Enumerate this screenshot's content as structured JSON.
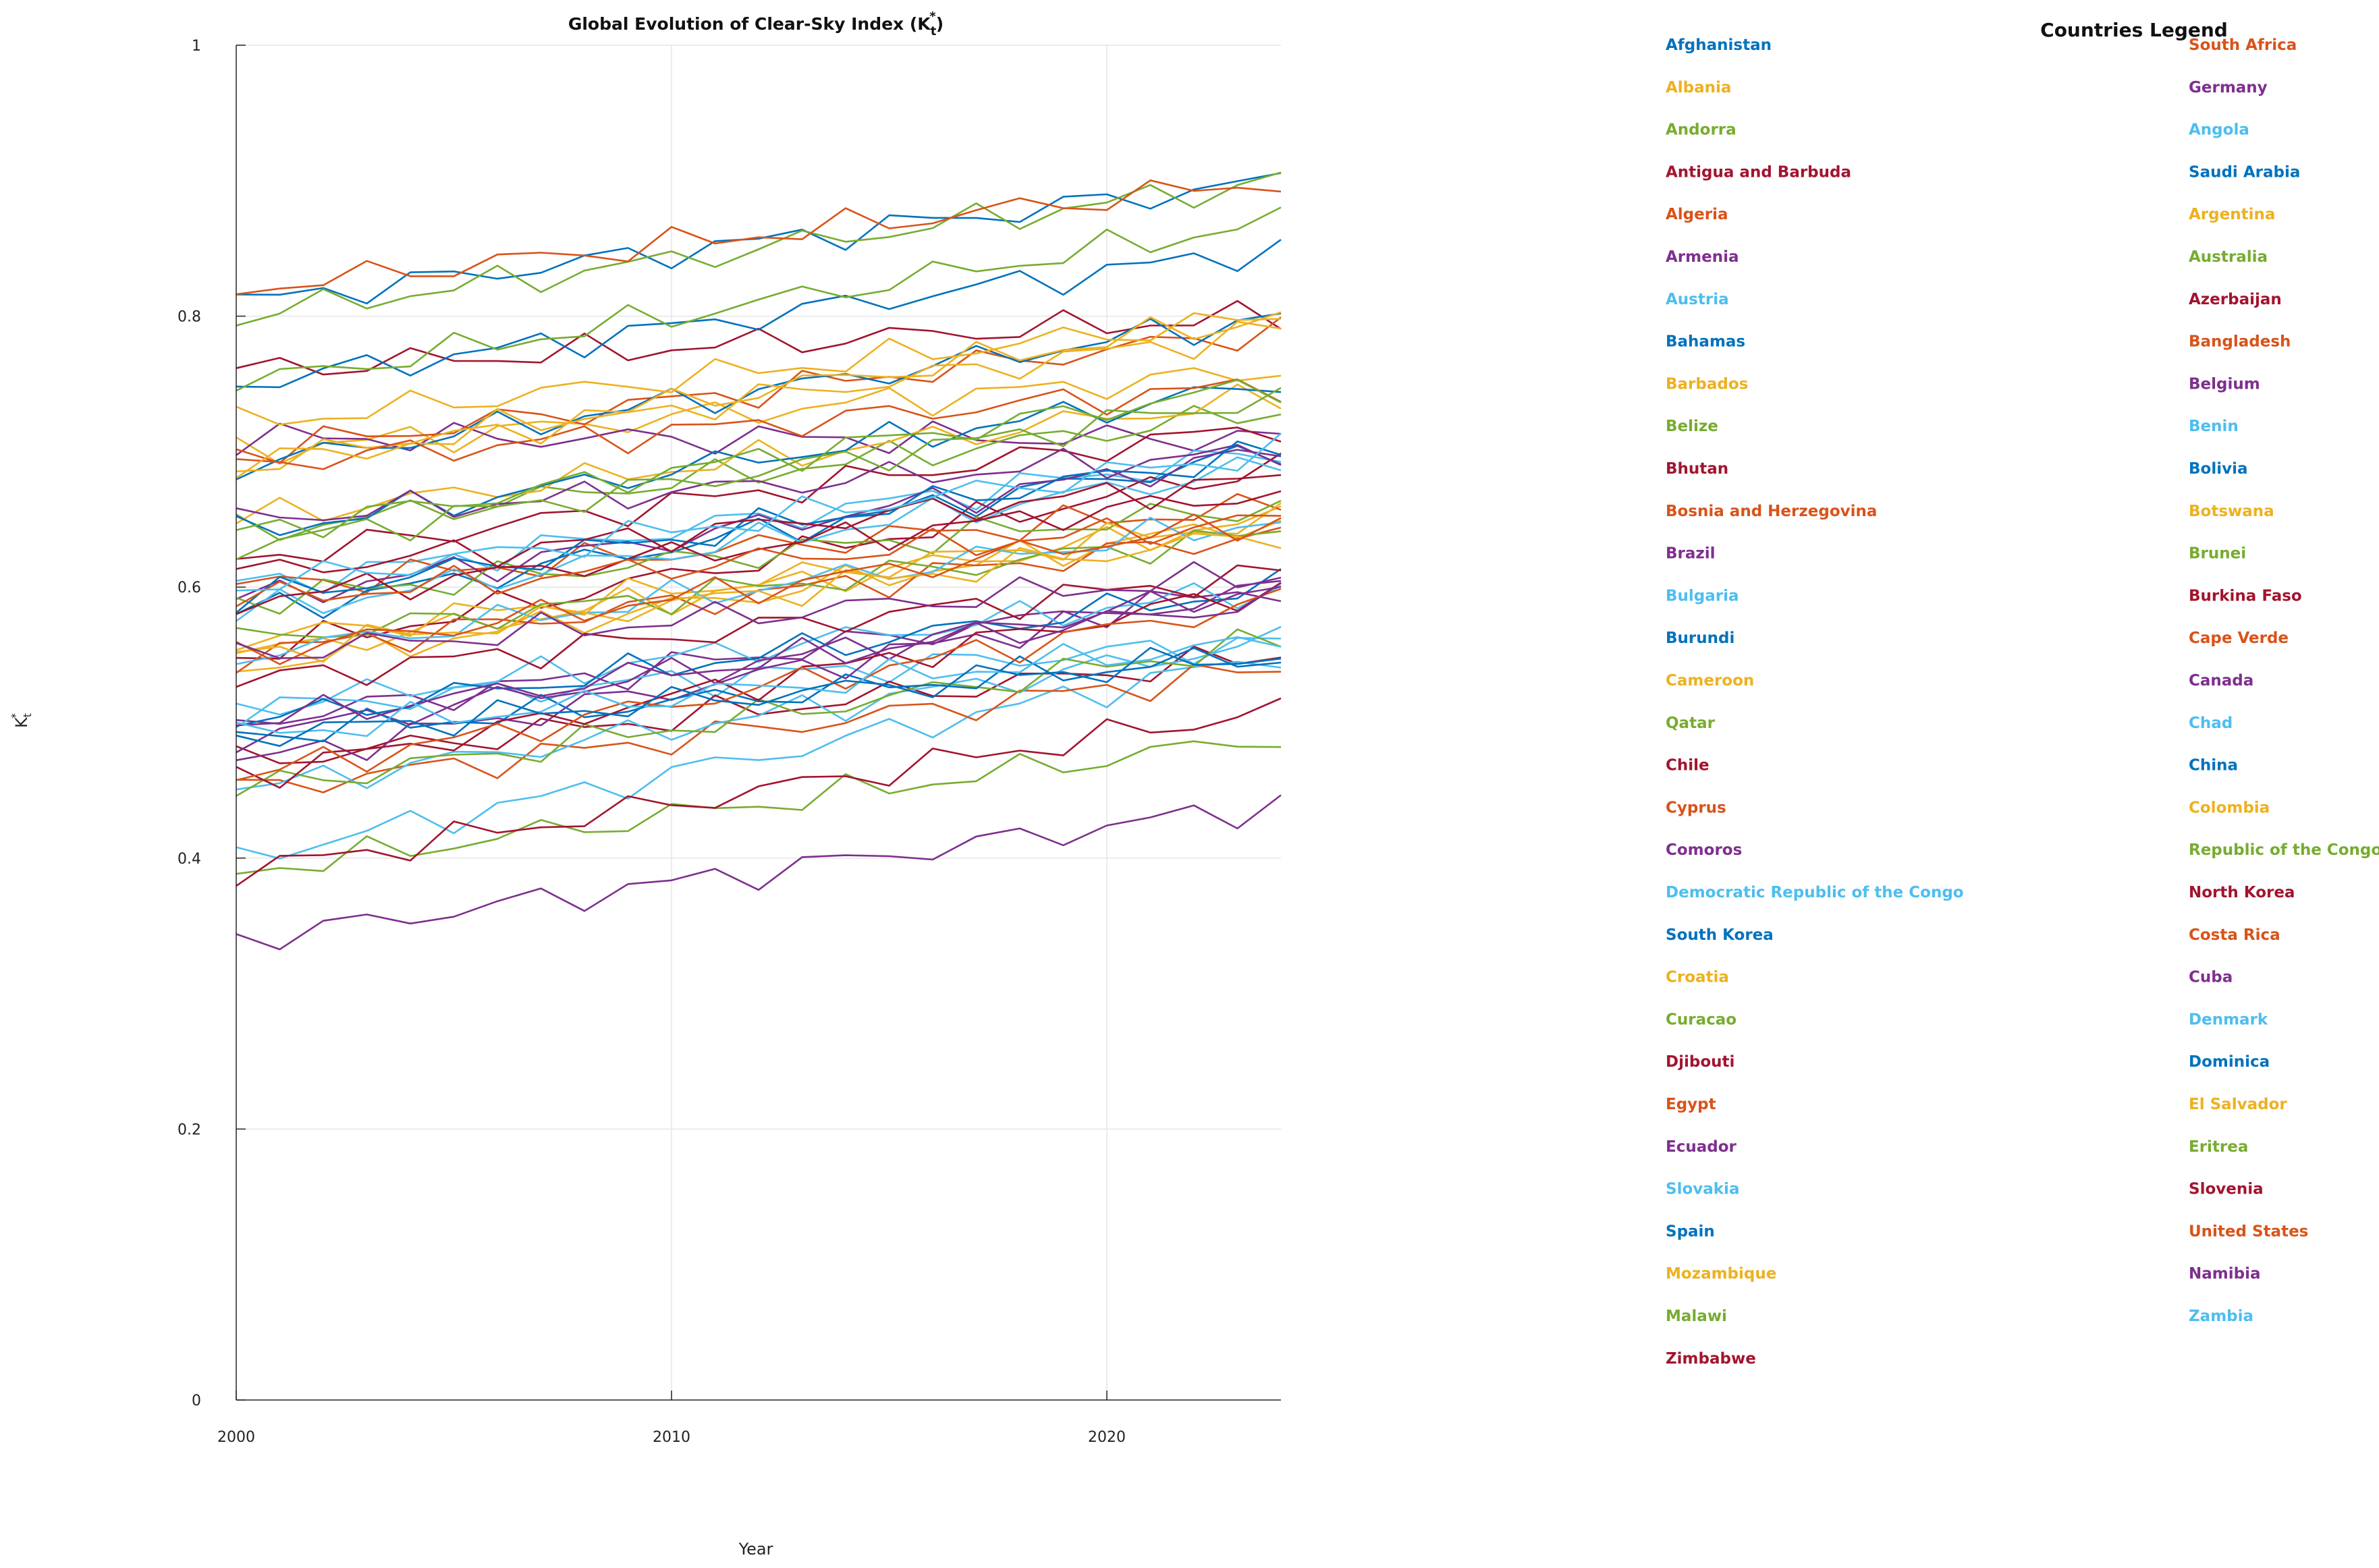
{
  "chart_data": {
    "type": "line",
    "title": "Global Evolution of Clear-Sky Index (K",
    "title_sub": "t",
    "title_sup": "*",
    "title_end": ")",
    "xlabel": "Year",
    "ylabel": "K",
    "ylabel_sub": "t",
    "ylabel_sup": "*",
    "xlim": [
      2000,
      2024
    ],
    "ylim": [
      0,
      1
    ],
    "xticks": [
      2000,
      2010,
      2020
    ],
    "xtick_labels": [
      "2000",
      "2010",
      "2020"
    ],
    "yticks": [
      0,
      0.2,
      0.4,
      0.6,
      0.8,
      1
    ],
    "ytick_labels": [
      "0",
      "0.2",
      "0.4",
      "0.6",
      "0.8",
      "1"
    ],
    "grid": true,
    "legend_title": "Countries Legend",
    "legend_placement": "right",
    "x": [
      2000,
      2001,
      2002,
      2003,
      2004,
      2005,
      2006,
      2007,
      2008,
      2009,
      2010,
      2011,
      2012,
      2013,
      2014,
      2015,
      2016,
      2017,
      2018,
      2019,
      2020,
      2021,
      2022,
      2023,
      2024
    ],
    "series": [
      {
        "name": "Afghanistan",
        "color": "#0072BD",
        "start": 0.81,
        "end": 0.9
      },
      {
        "name": "Albania",
        "color": "#EDB120",
        "start": 0.7,
        "end": 0.76
      },
      {
        "name": "Andorra",
        "color": "#77AC30",
        "start": 0.8,
        "end": 0.9
      },
      {
        "name": "Antigua and Barbuda",
        "color": "#A2142F",
        "start": 0.76,
        "end": 0.8
      },
      {
        "name": "Algeria",
        "color": "#D95319",
        "start": 0.82,
        "end": 0.9
      },
      {
        "name": "Armenia",
        "color": "#7E2F8E",
        "start": 0.71,
        "end": 0.71
      },
      {
        "name": "Austria",
        "color": "#4DBEEE",
        "start": 0.6,
        "end": 0.7
      },
      {
        "name": "Bahamas",
        "color": "#0072BD",
        "start": 0.75,
        "end": 0.85
      },
      {
        "name": "Barbados",
        "color": "#EDB120",
        "start": 0.55,
        "end": 0.65
      },
      {
        "name": "Belize",
        "color": "#77AC30",
        "start": 0.64,
        "end": 0.73
      },
      {
        "name": "Bhutan",
        "color": "#A2142F",
        "start": 0.55,
        "end": 0.69
      },
      {
        "name": "Bosnia and Herzegovina",
        "color": "#D95319",
        "start": 0.6,
        "end": 0.66
      },
      {
        "name": "Brazil",
        "color": "#7E2F8E",
        "start": 0.5,
        "end": 0.6
      },
      {
        "name": "Bulgaria",
        "color": "#4DBEEE",
        "start": 0.51,
        "end": 0.56
      },
      {
        "name": "Burundi",
        "color": "#0072BD",
        "start": 0.58,
        "end": 0.7
      },
      {
        "name": "Cameroon",
        "color": "#EDB120",
        "start": 0.54,
        "end": 0.65
      },
      {
        "name": "Qatar",
        "color": "#77AC30",
        "start": 0.75,
        "end": 0.87
      },
      {
        "name": "Chile",
        "color": "#A2142F",
        "start": 0.47,
        "end": 0.55
      },
      {
        "name": "Cyprus",
        "color": "#D95319",
        "start": 0.7,
        "end": 0.79
      },
      {
        "name": "Comoros",
        "color": "#7E2F8E",
        "start": 0.47,
        "end": 0.6
      },
      {
        "name": "Democratic Republic of the Congo",
        "color": "#4DBEEE",
        "start": 0.4,
        "end": 0.55
      },
      {
        "name": "South Korea",
        "color": "#0072BD",
        "start": 0.69,
        "end": 0.8
      },
      {
        "name": "Croatia",
        "color": "#EDB120",
        "start": 0.65,
        "end": 0.74
      },
      {
        "name": "Curacao",
        "color": "#77AC30",
        "start": 0.39,
        "end": 0.49
      },
      {
        "name": "Djibouti",
        "color": "#A2142F",
        "start": 0.39,
        "end": 0.51
      },
      {
        "name": "Egypt",
        "color": "#D95319",
        "start": 0.45,
        "end": 0.54
      },
      {
        "name": "Ecuador",
        "color": "#7E2F8E",
        "start": 0.34,
        "end": 0.44
      },
      {
        "name": "Slovakia",
        "color": "#4DBEEE",
        "start": 0.45,
        "end": 0.56
      },
      {
        "name": "Spain",
        "color": "#0072BD",
        "start": 0.64,
        "end": 0.75
      },
      {
        "name": "Mozambique",
        "color": "#EDB120",
        "start": 0.69,
        "end": 0.8
      },
      {
        "name": "Malawi",
        "color": "#77AC30",
        "start": 0.45,
        "end": 0.56
      },
      {
        "name": "Zimbabwe",
        "color": "#A2142F",
        "start": 0.62,
        "end": 0.72
      },
      {
        "name": "South Africa",
        "color": "#D95319",
        "start": 0.55,
        "end": 0.64
      },
      {
        "name": "Germany",
        "color": "#7E2F8E",
        "start": 0.59,
        "end": 0.7
      },
      {
        "name": "Angola",
        "color": "#4DBEEE",
        "start": 0.51,
        "end": 0.6
      },
      {
        "name": "Saudi Arabia",
        "color": "#0072BD",
        "start": 0.5,
        "end": 0.6
      },
      {
        "name": "Argentina",
        "color": "#EDB120",
        "start": 0.72,
        "end": 0.8
      },
      {
        "name": "Australia",
        "color": "#77AC30",
        "start": 0.59,
        "end": 0.66
      },
      {
        "name": "Azerbaijan",
        "color": "#A2142F",
        "start": 0.53,
        "end": 0.61
      },
      {
        "name": "Bangladesh",
        "color": "#D95319",
        "start": 0.69,
        "end": 0.75
      },
      {
        "name": "Belgium",
        "color": "#7E2F8E",
        "start": 0.49,
        "end": 0.6
      },
      {
        "name": "Benin",
        "color": "#4DBEEE",
        "start": 0.58,
        "end": 0.69
      },
      {
        "name": "Bolivia",
        "color": "#0072BD",
        "start": 0.49,
        "end": 0.55
      },
      {
        "name": "Botswana",
        "color": "#EDB120",
        "start": 0.56,
        "end": 0.65
      },
      {
        "name": "Brunei",
        "color": "#77AC30",
        "start": 0.56,
        "end": 0.64
      },
      {
        "name": "Burkina Faso",
        "color": "#A2142F",
        "start": 0.46,
        "end": 0.6
      },
      {
        "name": "Cape Verde",
        "color": "#D95319",
        "start": 0.46,
        "end": 0.59
      },
      {
        "name": "Canada",
        "color": "#7E2F8E",
        "start": 0.65,
        "end": 0.7
      },
      {
        "name": "Chad",
        "color": "#4DBEEE",
        "start": 0.55,
        "end": 0.65
      },
      {
        "name": "China",
        "color": "#0072BD",
        "start": 0.59,
        "end": 0.7
      },
      {
        "name": "Colombia",
        "color": "#EDB120",
        "start": 0.55,
        "end": 0.64
      },
      {
        "name": "Republic of the Congo",
        "color": "#77AC30",
        "start": 0.63,
        "end": 0.74
      },
      {
        "name": "North Korea",
        "color": "#A2142F",
        "start": 0.61,
        "end": 0.68
      },
      {
        "name": "Costa Rica",
        "color": "#D95319",
        "start": 0.55,
        "end": 0.65
      },
      {
        "name": "Cuba",
        "color": "#7E2F8E",
        "start": 0.5,
        "end": 0.59
      },
      {
        "name": "Denmark",
        "color": "#4DBEEE",
        "start": 0.49,
        "end": 0.56
      },
      {
        "name": "Dominica",
        "color": "#0072BD",
        "start": 0.49,
        "end": 0.55
      },
      {
        "name": "El Salvador",
        "color": "#EDB120",
        "start": 0.69,
        "end": 0.79
      },
      {
        "name": "Eritrea",
        "color": "#77AC30",
        "start": 0.64,
        "end": 0.75
      },
      {
        "name": "Slovenia",
        "color": "#A2142F",
        "start": 0.59,
        "end": 0.67
      },
      {
        "name": "United States",
        "color": "#D95319",
        "start": 0.59,
        "end": 0.65
      },
      {
        "name": "Namibia",
        "color": "#7E2F8E",
        "start": 0.55,
        "end": 0.61
      },
      {
        "name": "Zambia",
        "color": "#4DBEEE",
        "start": 0.6,
        "end": 0.7
      }
    ]
  }
}
